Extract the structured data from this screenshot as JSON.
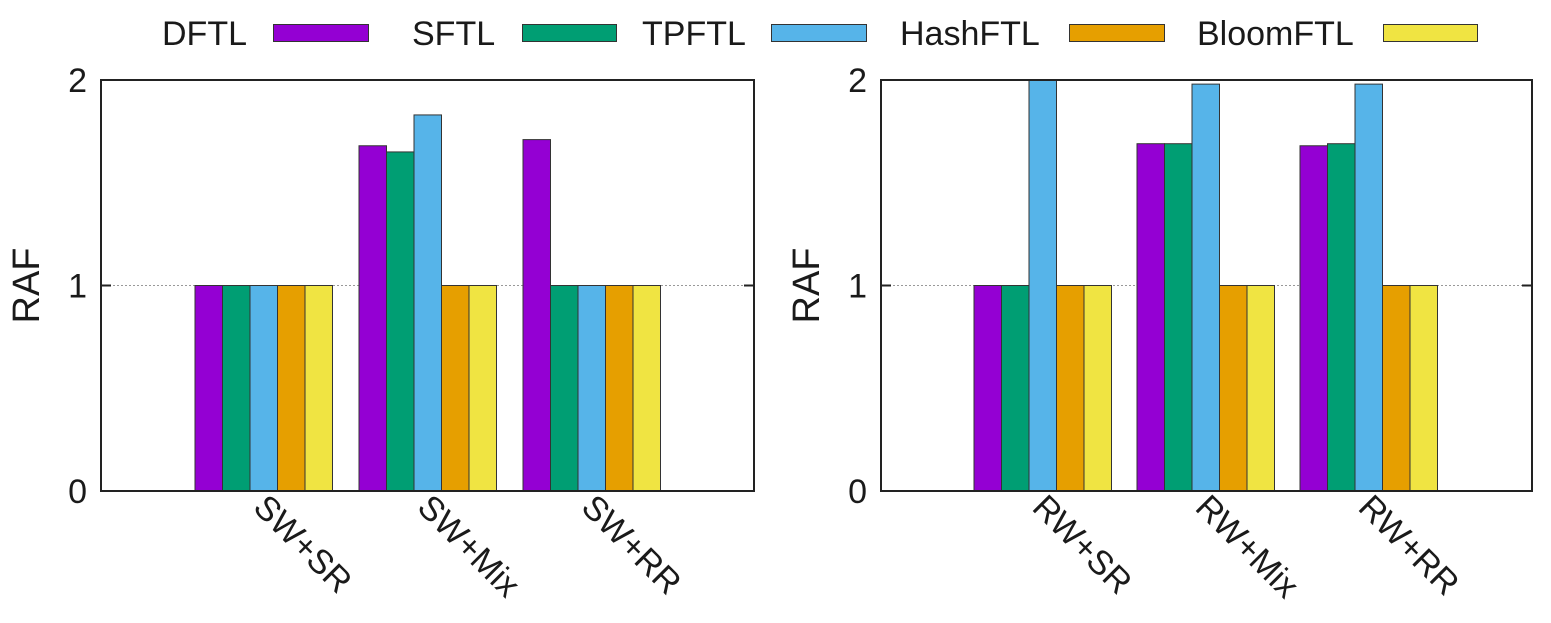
{
  "legend": {
    "items": [
      {
        "label": "DFTL",
        "color": "#9400d3"
      },
      {
        "label": "SFTL",
        "color": "#009e73"
      },
      {
        "label": "TPFTL",
        "color": "#56b4e9"
      },
      {
        "label": "HashFTL",
        "color": "#e69f00"
      },
      {
        "label": "BloomFTL",
        "color": "#f0e442"
      }
    ]
  },
  "chart_data": [
    {
      "type": "bar",
      "ylabel": "RAF",
      "ylim": [
        0,
        2
      ],
      "yticks": [
        "0",
        "1",
        "2"
      ],
      "grid": "dotted line at y=1",
      "categories": [
        "SW+SR",
        "SW+Mix",
        "SW+RR"
      ],
      "series": [
        {
          "name": "DFTL",
          "values": [
            1.0,
            1.68,
            1.71
          ]
        },
        {
          "name": "SFTL",
          "values": [
            1.0,
            1.65,
            1.0
          ]
        },
        {
          "name": "TPFTL",
          "values": [
            1.0,
            1.83,
            1.0
          ]
        },
        {
          "name": "HashFTL",
          "values": [
            1.0,
            1.0,
            1.0
          ]
        },
        {
          "name": "BloomFTL",
          "values": [
            1.0,
            1.0,
            1.0
          ]
        }
      ]
    },
    {
      "type": "bar",
      "ylabel": "RAF",
      "ylim": [
        0,
        2
      ],
      "yticks": [
        "0",
        "1",
        "2"
      ],
      "grid": "dotted line at y=1",
      "categories": [
        "RW+SR",
        "RW+Mix",
        "RW+RR"
      ],
      "series": [
        {
          "name": "DFTL",
          "values": [
            1.0,
            1.69,
            1.68
          ]
        },
        {
          "name": "SFTL",
          "values": [
            1.0,
            1.69,
            1.69
          ]
        },
        {
          "name": "TPFTL",
          "values": [
            2.0,
            1.98,
            1.98
          ]
        },
        {
          "name": "HashFTL",
          "values": [
            1.0,
            1.0,
            1.0
          ]
        },
        {
          "name": "BloomFTL",
          "values": [
            1.0,
            1.0,
            1.0
          ]
        }
      ]
    }
  ]
}
